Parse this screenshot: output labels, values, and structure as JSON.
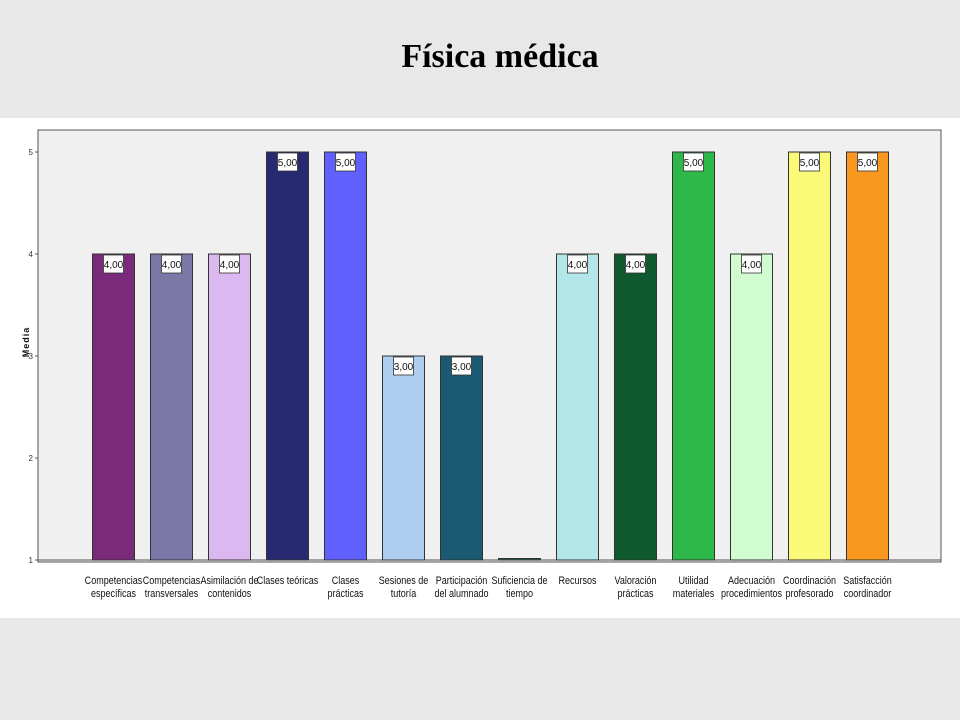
{
  "page": {
    "title": "Física médica"
  },
  "chart_data": {
    "type": "bar",
    "title": "Física médica",
    "xlabel": "",
    "ylabel": "Media",
    "ylim": [
      1,
      5
    ],
    "yticks": [
      "1",
      "2",
      "3",
      "4",
      "5"
    ],
    "grid": false,
    "legend": "none",
    "categories": [
      [
        "Competencias",
        "específicas"
      ],
      [
        "Competencias",
        "transversales"
      ],
      [
        "Asimilación de",
        "contenidos"
      ],
      [
        "Clases teóricas"
      ],
      [
        "Clases",
        "prácticas"
      ],
      [
        "Sesiones de",
        "tutoría"
      ],
      [
        "Participación",
        "del alumnado"
      ],
      [
        "Suficiencia de",
        "tiempo"
      ],
      [
        "Recursos"
      ],
      [
        "Valoración",
        "prácticas"
      ],
      [
        "Utilidad",
        "materiales"
      ],
      [
        "Adecuación",
        "procedimientos"
      ],
      [
        "Coordinación",
        "profesorado"
      ],
      [
        "Satisfacción",
        "coordinador"
      ]
    ],
    "values": [
      4,
      4,
      4,
      5,
      5,
      3,
      3,
      1,
      4,
      4,
      5,
      4,
      5,
      5
    ],
    "value_labels": [
      "4,00",
      "4,00",
      "4,00",
      "5,00",
      "5,00",
      "3,00",
      "3,00",
      "",
      "4,00",
      "4,00",
      "5,00",
      "4,00",
      "5,00",
      "5,00"
    ],
    "colors": [
      "#7a2a7a",
      "#7b78a8",
      "#dcb8f0",
      "#272a70",
      "#6060fc",
      "#aecef0",
      "#1a5a72",
      "#1a6a4a",
      "#b2e6e8",
      "#0e5a2e",
      "#2eb84a",
      "#d0fcd0",
      "#fafa78",
      "#f8981e"
    ]
  }
}
